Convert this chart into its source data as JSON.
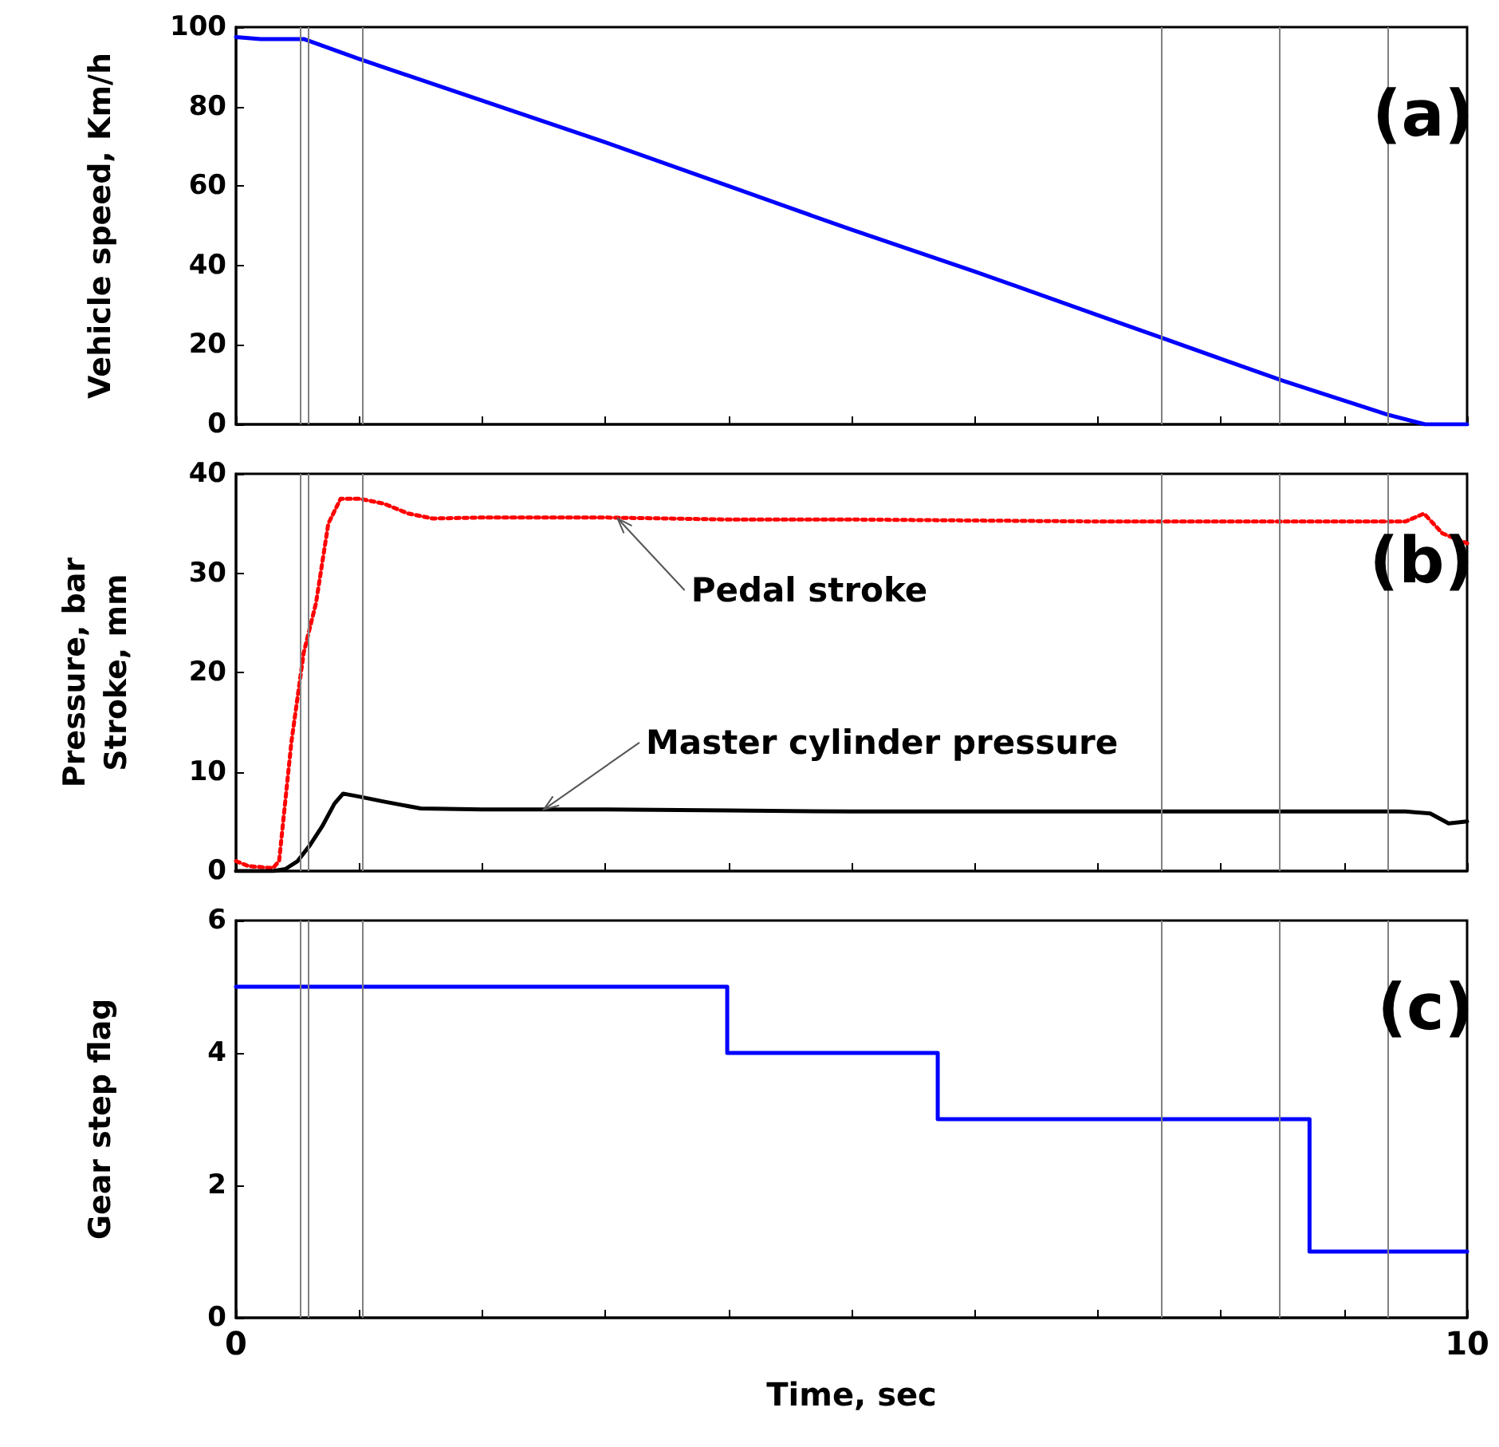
{
  "chart_data": [
    {
      "type": "line",
      "ylabel": "Vehicle speed, Km/h",
      "annotations": [
        "(a)"
      ],
      "xlim": [
        0,
        10
      ],
      "xticks": [
        {
          "value": 0,
          "label": null
        },
        {
          "value": 1,
          "label": null
        },
        {
          "value": 2,
          "label": null
        },
        {
          "value": 3,
          "label": null
        },
        {
          "value": 4,
          "label": null
        },
        {
          "value": 5,
          "label": null
        },
        {
          "value": 6,
          "label": null
        },
        {
          "value": 7,
          "label": null
        },
        {
          "value": 8,
          "label": null
        },
        {
          "value": 9,
          "label": null
        },
        {
          "value": 10,
          "label": null
        }
      ],
      "ylim": [
        0,
        100
      ],
      "yticks": [
        0,
        20,
        40,
        60,
        80,
        100
      ],
      "tick_labels": "y",
      "marker": "none",
      "series": [
        {
          "color": "#0000ff",
          "line_style": "solid",
          "x": [
            0,
            0.2,
            0.55,
            1,
            2,
            3,
            4,
            5,
            6,
            7,
            7.5,
            8,
            8.5,
            9,
            9.35,
            9.66,
            10
          ],
          "values": [
            97.5,
            97,
            97,
            92,
            81.5,
            71,
            60,
            49,
            38.5,
            27.5,
            22,
            16.5,
            11,
            6,
            2.5,
            0,
            0
          ]
        }
      ],
      "ref_lines": [
        {
          "axis": "x",
          "value": 0.52,
          "color": "#808080"
        },
        {
          "axis": "x",
          "value": 0.59,
          "color": "#808080"
        },
        {
          "axis": "x",
          "value": 1.03,
          "color": "#808080"
        },
        {
          "axis": "x",
          "value": 7.51,
          "color": "#808080"
        },
        {
          "axis": "x",
          "value": 8.47,
          "color": "#808080"
        },
        {
          "axis": "x",
          "value": 9.35,
          "color": "#808080"
        }
      ]
    },
    {
      "type": "line",
      "ylabel": "Pressure, bar\nStroke, mm",
      "annotations": [
        "(b)",
        {
          "text": "Pedal stroke",
          "x": 3.1,
          "y": 35.5
        },
        {
          "text": "Master cylinder pressure",
          "x": 2.5,
          "y": 6.2
        }
      ],
      "xlim": [
        0,
        10
      ],
      "xticks": [
        {
          "value": 0,
          "label": null
        },
        {
          "value": 1,
          "label": null
        },
        {
          "value": 2,
          "label": null
        },
        {
          "value": 3,
          "label": null
        },
        {
          "value": 4,
          "label": null
        },
        {
          "value": 5,
          "label": null
        },
        {
          "value": 6,
          "label": null
        },
        {
          "value": 7,
          "label": null
        },
        {
          "value": 8,
          "label": null
        },
        {
          "value": 9,
          "label": null
        },
        {
          "value": 10,
          "label": null
        }
      ],
      "ylim": [
        0,
        40
      ],
      "yticks": [
        0,
        10,
        20,
        30,
        40
      ],
      "tick_labels": "y",
      "marker": "none",
      "series": [
        {
          "color": "#ff0000",
          "line_style": "dotted",
          "x": [
            0,
            0.1,
            0.3,
            0.35,
            0.45,
            0.55,
            0.65,
            0.75,
            0.85,
            1,
            1.2,
            1.4,
            1.6,
            2,
            3,
            4,
            5,
            6,
            7,
            8,
            9,
            9.5,
            9.65,
            9.8,
            10
          ],
          "values": [
            1,
            0.5,
            0.3,
            1,
            13,
            22,
            27,
            35,
            37.5,
            37.5,
            37,
            36,
            35.5,
            35.6,
            35.6,
            35.4,
            35.4,
            35.3,
            35.2,
            35.2,
            35.2,
            35.2,
            36,
            34,
            33
          ]
        },
        {
          "color": "#000000",
          "line_style": "solid",
          "x": [
            0,
            0.3,
            0.4,
            0.5,
            0.6,
            0.7,
            0.8,
            0.87,
            1,
            1.2,
            1.5,
            2,
            3,
            4,
            5,
            6,
            7,
            8,
            9,
            9.5,
            9.7,
            9.85,
            10
          ],
          "values": [
            0,
            0,
            0.2,
            1,
            2.6,
            4.5,
            6.8,
            7.8,
            7.5,
            7,
            6.3,
            6.2,
            6.2,
            6.1,
            6,
            6,
            6,
            6,
            6,
            6,
            5.8,
            4.8,
            5
          ]
        }
      ],
      "ref_lines": [
        {
          "axis": "x",
          "value": 0.52,
          "color": "#808080"
        },
        {
          "axis": "x",
          "value": 0.59,
          "color": "#808080"
        },
        {
          "axis": "x",
          "value": 1.03,
          "color": "#808080"
        },
        {
          "axis": "x",
          "value": 7.51,
          "color": "#808080"
        },
        {
          "axis": "x",
          "value": 8.47,
          "color": "#808080"
        },
        {
          "axis": "x",
          "value": 9.35,
          "color": "#808080"
        }
      ]
    },
    {
      "type": "step",
      "xlabel": "Time, sec",
      "ylabel": "Gear step flag",
      "annotations": [
        "(c)"
      ],
      "xlim": [
        0,
        10
      ],
      "xticks": [
        {
          "value": 0,
          "label": "0"
        },
        {
          "value": 1,
          "label": null
        },
        {
          "value": 2,
          "label": null
        },
        {
          "value": 3,
          "label": null
        },
        {
          "value": 4,
          "label": null
        },
        {
          "value": 5,
          "label": null
        },
        {
          "value": 6,
          "label": null
        },
        {
          "value": 7,
          "label": null
        },
        {
          "value": 8,
          "label": null
        },
        {
          "value": 9,
          "label": null
        },
        {
          "value": 10,
          "label": "10"
        }
      ],
      "ylim": [
        0,
        6
      ],
      "yticks": [
        0,
        2,
        4,
        6
      ],
      "marker": "none",
      "series": [
        {
          "color": "#0000ff",
          "line_style": "solid",
          "x": [
            0,
            3.99,
            5.7,
            8.72,
            10
          ],
          "values": [
            5,
            4,
            3,
            1,
            1
          ]
        }
      ],
      "ref_lines": [
        {
          "axis": "x",
          "value": 0.52,
          "color": "#808080"
        },
        {
          "axis": "x",
          "value": 0.59,
          "color": "#808080"
        },
        {
          "axis": "x",
          "value": 1.03,
          "color": "#808080"
        },
        {
          "axis": "x",
          "value": 7.51,
          "color": "#808080"
        },
        {
          "axis": "x",
          "value": 8.47,
          "color": "#808080"
        },
        {
          "axis": "x",
          "value": 9.35,
          "color": "#808080"
        }
      ]
    }
  ]
}
